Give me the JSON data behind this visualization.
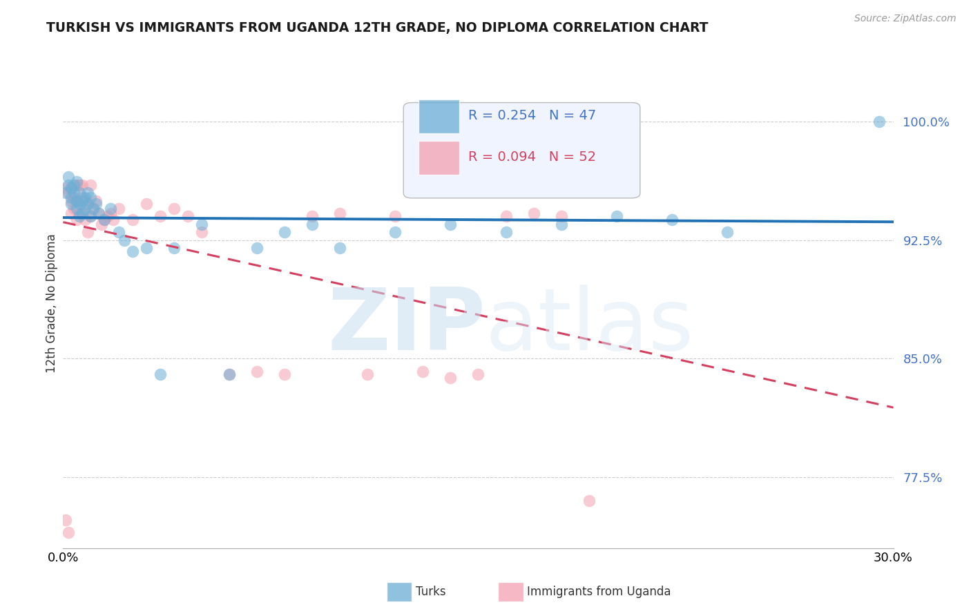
{
  "title": "TURKISH VS IMMIGRANTS FROM UGANDA 12TH GRADE, NO DIPLOMA CORRELATION CHART",
  "source": "Source: ZipAtlas.com",
  "ylabel": "12th Grade, No Diploma",
  "y_ticks": [
    0.775,
    0.85,
    0.925,
    1.0
  ],
  "y_tick_labels": [
    "77.5%",
    "85.0%",
    "92.5%",
    "100.0%"
  ],
  "xmin": 0.0,
  "xmax": 0.3,
  "ymin": 0.73,
  "ymax": 1.04,
  "blue_color": "#6baed6",
  "pink_color": "#f4a0b0",
  "blue_line_color": "#2171b5",
  "pink_line_color": "#d44060",
  "turks_label": "Turks",
  "uganda_label": "Immigrants from Uganda",
  "blue_scatter_x": [
    0.001,
    0.002,
    0.002,
    0.003,
    0.003,
    0.003,
    0.004,
    0.004,
    0.005,
    0.005,
    0.005,
    0.006,
    0.006,
    0.006,
    0.007,
    0.007,
    0.008,
    0.008,
    0.009,
    0.009,
    0.01,
    0.01,
    0.011,
    0.012,
    0.013,
    0.015,
    0.017,
    0.02,
    0.022,
    0.025,
    0.03,
    0.035,
    0.04,
    0.05,
    0.06,
    0.07,
    0.08,
    0.09,
    0.1,
    0.12,
    0.14,
    0.16,
    0.18,
    0.2,
    0.22,
    0.24,
    0.295
  ],
  "blue_scatter_y": [
    0.955,
    0.96,
    0.965,
    0.948,
    0.952,
    0.958,
    0.96,
    0.955,
    0.945,
    0.95,
    0.962,
    0.94,
    0.948,
    0.955,
    0.942,
    0.95,
    0.945,
    0.952,
    0.948,
    0.955,
    0.94,
    0.952,
    0.945,
    0.948,
    0.942,
    0.938,
    0.945,
    0.93,
    0.925,
    0.918,
    0.92,
    0.84,
    0.92,
    0.935,
    0.84,
    0.92,
    0.93,
    0.935,
    0.92,
    0.93,
    0.935,
    0.93,
    0.935,
    0.94,
    0.938,
    0.93,
    1.0
  ],
  "pink_scatter_x": [
    0.001,
    0.001,
    0.002,
    0.002,
    0.003,
    0.003,
    0.003,
    0.004,
    0.004,
    0.005,
    0.005,
    0.005,
    0.006,
    0.006,
    0.007,
    0.007,
    0.007,
    0.008,
    0.008,
    0.009,
    0.009,
    0.01,
    0.01,
    0.011,
    0.012,
    0.013,
    0.014,
    0.015,
    0.016,
    0.017,
    0.018,
    0.02,
    0.025,
    0.03,
    0.035,
    0.04,
    0.045,
    0.05,
    0.06,
    0.07,
    0.08,
    0.09,
    0.1,
    0.11,
    0.12,
    0.13,
    0.14,
    0.15,
    0.16,
    0.17,
    0.18,
    0.19
  ],
  "pink_scatter_y": [
    0.958,
    0.748,
    0.955,
    0.74,
    0.95,
    0.958,
    0.942,
    0.945,
    0.952,
    0.96,
    0.938,
    0.95,
    0.96,
    0.942,
    0.952,
    0.942,
    0.96,
    0.938,
    0.95,
    0.948,
    0.93,
    0.96,
    0.94,
    0.945,
    0.95,
    0.942,
    0.935,
    0.938,
    0.94,
    0.942,
    0.938,
    0.945,
    0.938,
    0.948,
    0.94,
    0.945,
    0.94,
    0.93,
    0.84,
    0.842,
    0.84,
    0.94,
    0.942,
    0.84,
    0.94,
    0.842,
    0.838,
    0.84,
    0.94,
    0.942,
    0.94,
    0.76
  ]
}
